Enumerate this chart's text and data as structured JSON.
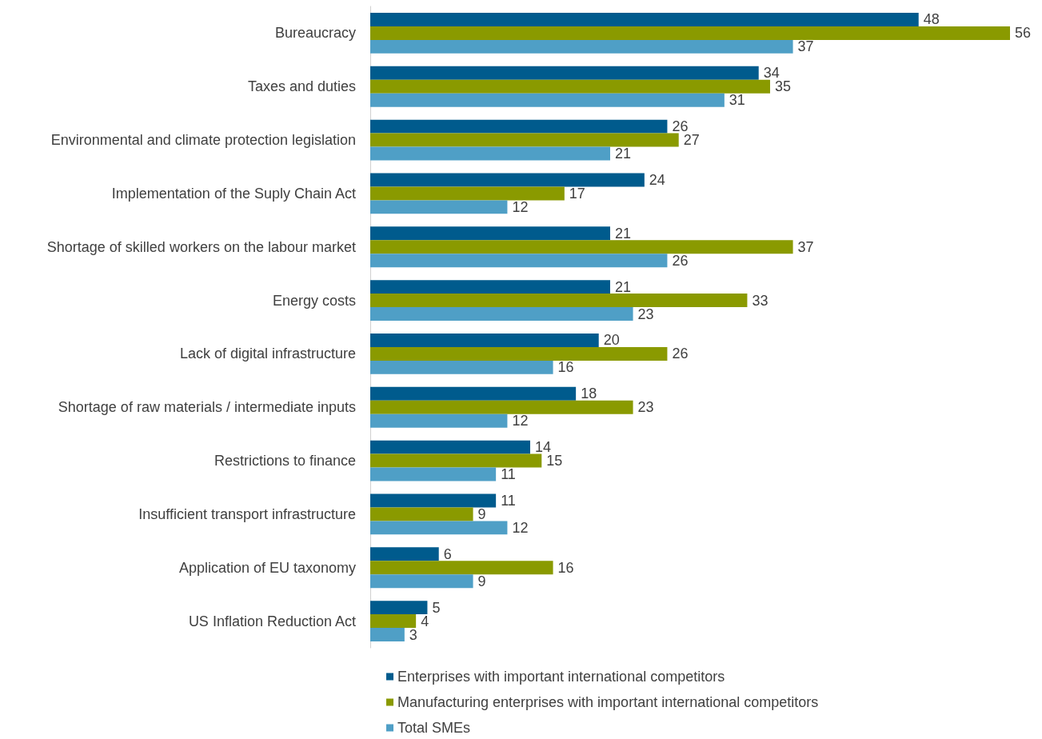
{
  "chart_data": {
    "type": "bar",
    "orientation": "horizontal",
    "data_labels": true,
    "legend": "bottom",
    "categories": [
      "Bureaucracy",
      "Taxes and duties",
      "Environmental and climate protection legislation",
      "Implementation of the Suply Chain Act",
      "Shortage of skilled workers on the labour market",
      "Energy costs",
      "Lack of digital infrastructure",
      "Shortage of raw materials / intermediate inputs",
      "Restrictions to finance",
      "Insufficient transport infrastructure",
      "Application of EU taxonomy",
      "US Inflation Reduction Act"
    ],
    "series": [
      {
        "name": "Enterprises with important international competitors",
        "color": "#005b8d",
        "values": [
          48,
          34,
          26,
          24,
          21,
          21,
          20,
          18,
          14,
          11,
          6,
          5
        ]
      },
      {
        "name": "Manufacturing enterprises with important international competitors",
        "color": "#8a9a00",
        "values": [
          56,
          35,
          27,
          17,
          37,
          33,
          26,
          23,
          15,
          9,
          16,
          4
        ]
      },
      {
        "name": "Total SMEs",
        "color": "#4f9fc6",
        "values": [
          37,
          31,
          21,
          12,
          26,
          23,
          16,
          12,
          11,
          12,
          9,
          3
        ]
      }
    ]
  }
}
